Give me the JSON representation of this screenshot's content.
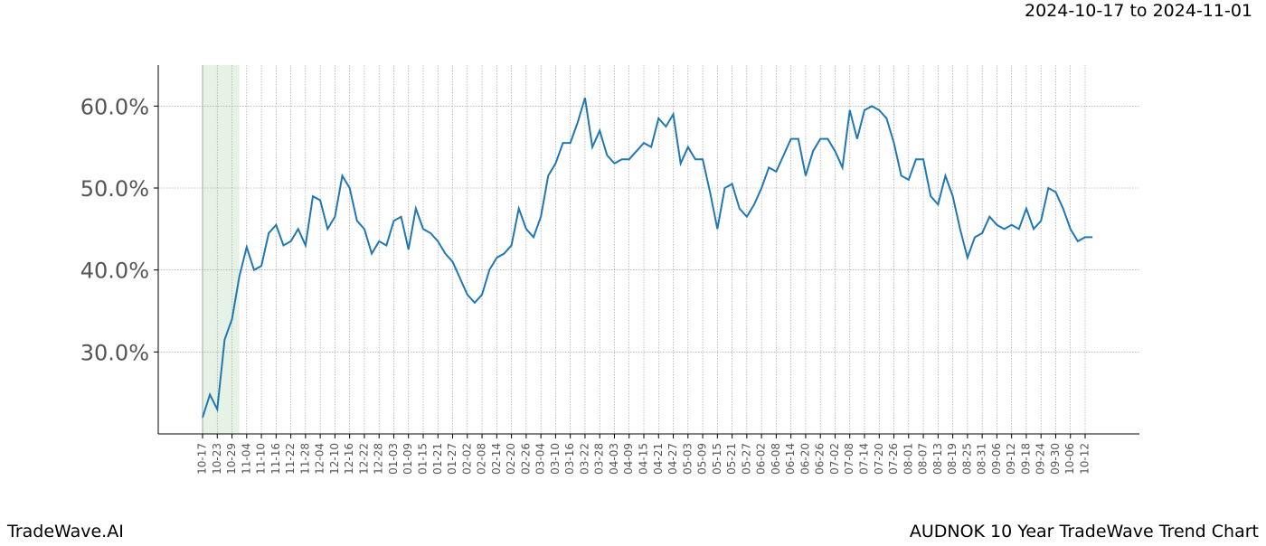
{
  "chart_data": {
    "type": "line",
    "date_range": "2024-10-17 to 2024-11-01",
    "brand": "TradeWave.AI",
    "title": "AUDNOK 10 Year TradeWave Trend Chart",
    "categories": [
      "10-17",
      null,
      "10-23",
      null,
      "10-29",
      null,
      "11-04",
      null,
      "11-10",
      null,
      "11-16",
      null,
      "11-22",
      null,
      "11-28",
      null,
      "12-04",
      null,
      "12-10",
      null,
      "12-16",
      null,
      "12-22",
      null,
      "12-28",
      null,
      "01-03",
      null,
      "01-09",
      null,
      "01-15",
      null,
      "01-21",
      null,
      "01-27",
      null,
      "02-02",
      null,
      "02-08",
      null,
      "02-14",
      null,
      "02-20",
      null,
      "02-26",
      null,
      "03-04",
      null,
      "03-10",
      null,
      "03-16",
      null,
      "03-22",
      null,
      "03-28",
      null,
      "04-03",
      null,
      "04-09",
      null,
      "04-15",
      null,
      "04-21",
      null,
      "04-27",
      null,
      "05-03",
      null,
      "05-09",
      null,
      "05-15",
      null,
      "05-21",
      null,
      "05-27",
      null,
      "06-02",
      null,
      "06-08",
      null,
      "06-14",
      null,
      "06-20",
      null,
      "06-26",
      null,
      "07-02",
      null,
      "07-08",
      null,
      "07-14",
      null,
      "07-20",
      null,
      "07-26",
      null,
      "08-01",
      null,
      "08-07",
      null,
      "08-13",
      null,
      "08-19",
      null,
      "08-25",
      null,
      "08-31",
      null,
      "09-06",
      null,
      "09-12",
      null,
      "09-18",
      null,
      "09-24",
      null,
      "09-30",
      null,
      "10-06",
      null,
      "10-12",
      null
    ],
    "series": [
      {
        "color": "#1f77b4",
        "values": [
          22,
          24.8,
          23,
          31.5,
          34,
          39.2,
          42.8,
          40,
          40.5,
          44.5,
          45.5,
          43,
          43.5,
          45,
          43,
          49,
          48.5,
          45,
          46.5,
          51.5,
          50,
          46,
          45,
          42,
          43.5,
          43,
          46,
          46.5,
          42.5,
          47.5,
          45,
          44.5,
          43.5,
          42,
          41,
          39,
          37,
          36,
          37,
          40,
          41.5,
          42,
          43,
          47.5,
          45,
          44,
          46.5,
          51.5,
          53,
          55.5,
          55.5,
          58,
          61,
          55,
          57,
          54,
          53,
          53.5,
          53.5,
          54.5,
          55.5,
          55,
          58.5,
          57.5,
          59,
          53,
          55,
          53.5,
          53.5,
          49.5,
          45,
          50,
          50.5,
          47.5,
          46.5,
          48,
          50,
          52.5,
          52,
          54,
          56,
          56,
          51.5,
          54.5,
          56,
          56,
          54.5,
          52.5,
          59.5,
          56,
          59.5,
          60,
          59.5,
          58.5,
          55.5,
          51.5,
          51,
          53.5,
          53.5,
          49,
          48,
          51.5,
          49,
          45,
          41.5,
          44,
          44.5,
          46.5,
          45.5,
          45,
          45.5,
          45,
          47.5,
          45,
          46,
          50,
          49.5,
          47.5,
          45,
          43.5,
          44,
          44
        ]
      }
    ],
    "shaded_span": {
      "start": 0,
      "end": 5,
      "color": "#e6f2e6"
    },
    "ylim": [
      20,
      65
    ],
    "yticks": [
      {
        "value": 30,
        "label": "30.0%"
      },
      {
        "value": 40,
        "label": "40.0%"
      },
      {
        "value": 50,
        "label": "50.0%"
      },
      {
        "value": 60,
        "label": "60.0%"
      }
    ],
    "grid": true
  }
}
